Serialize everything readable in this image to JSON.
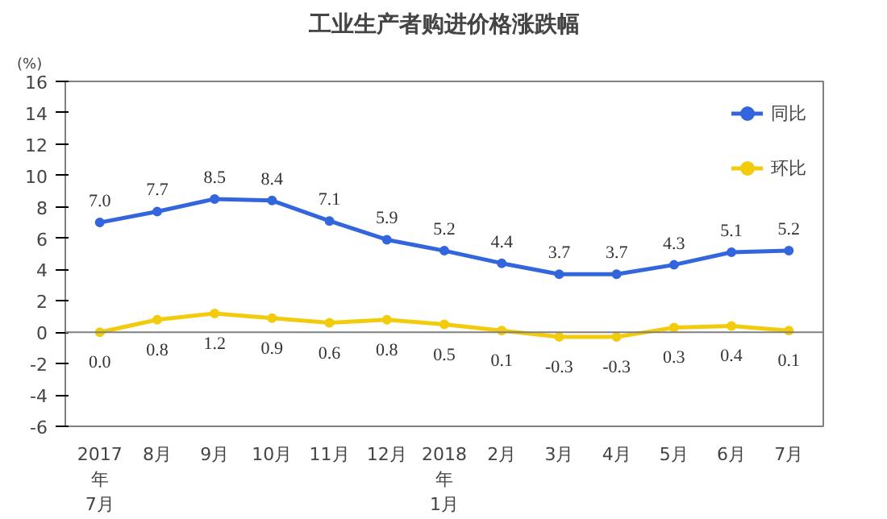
{
  "chart_data": {
    "type": "line",
    "title": "工业生产者购进价格涨跌幅",
    "ylabel": "(%)",
    "categories": [
      "2017\n年\n7月",
      "8月",
      "9月",
      "10月",
      "11月",
      "12月",
      "2018\n年\n1月",
      "2月",
      "3月",
      "4月",
      "5月",
      "6月",
      "7月"
    ],
    "series": [
      {
        "name": "同比",
        "color": "#3366dd",
        "values": [
          7.0,
          7.7,
          8.5,
          8.4,
          7.1,
          5.9,
          5.2,
          4.4,
          3.7,
          3.7,
          4.3,
          5.1,
          5.2
        ],
        "value_labels": [
          "7.0",
          "7.7",
          "8.5",
          "8.4",
          "7.1",
          "5.9",
          "5.2",
          "4.4",
          "3.7",
          "3.7",
          "4.3",
          "5.1",
          "5.2"
        ]
      },
      {
        "name": "环比",
        "color": "#f2cc0c",
        "values": [
          0.0,
          0.8,
          1.2,
          0.9,
          0.6,
          0.8,
          0.5,
          0.1,
          -0.3,
          -0.3,
          0.3,
          0.4,
          0.1
        ],
        "value_labels": [
          "0.0",
          "0.8",
          "1.2",
          "0.9",
          "0.6",
          "0.8",
          "0.5",
          "0.1",
          "-0.3",
          "-0.3",
          "0.3",
          "0.4",
          "0.1"
        ]
      }
    ],
    "ylim": [
      -6,
      16
    ],
    "yticks": [
      -6,
      -4,
      -2,
      0,
      2,
      4,
      6,
      8,
      10,
      12,
      14,
      16
    ],
    "ref_lines": [
      {
        "axis": "y",
        "value": 0,
        "color": "#808080"
      }
    ],
    "grid": false,
    "legend": "top right",
    "marker": "circle",
    "line_style": "solid"
  }
}
